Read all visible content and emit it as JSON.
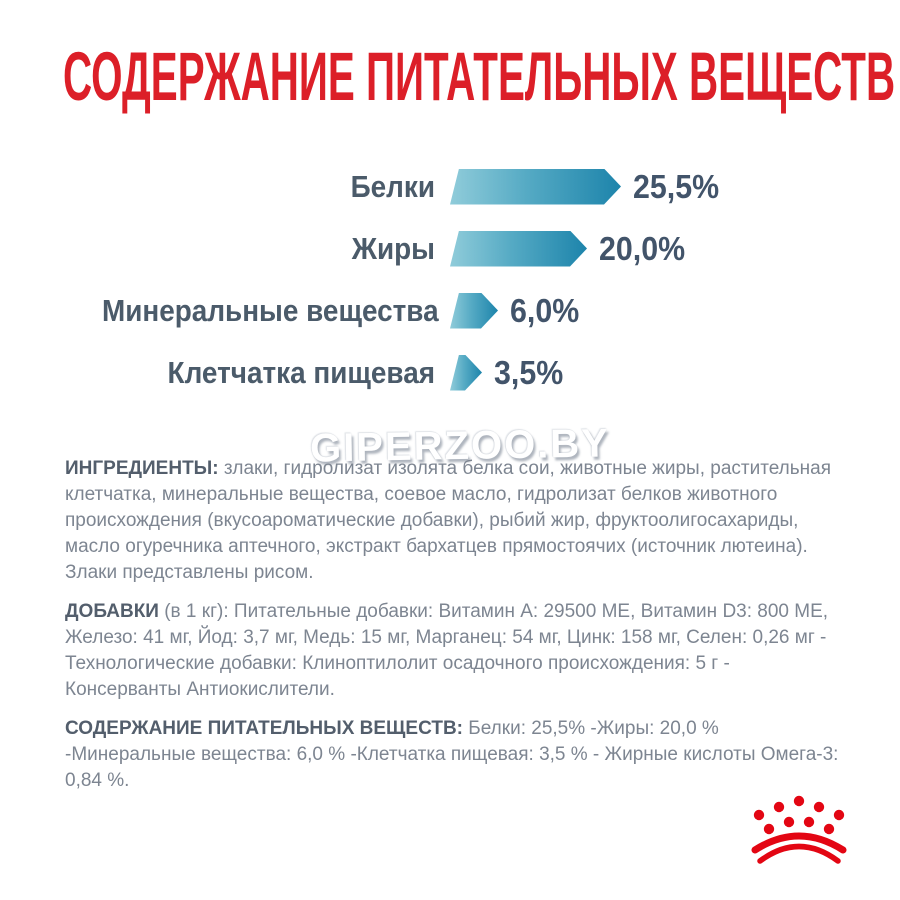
{
  "title": "СОДЕРЖАНИЕ ПИТАТЕЛЬНЫХ ВЕЩЕСТВ",
  "watermark": "GIPERZOO.BY",
  "colors": {
    "title_red": "#dc1f28",
    "logo_red": "#e30613",
    "bar_gradient_start": "#90ccda",
    "bar_gradient_end": "#1d84ab",
    "label_text": "#4b5b6a",
    "value_text": "#42546a",
    "body_text": "#7d8591",
    "header_text": "#535e6c"
  },
  "chart_data": {
    "type": "bar",
    "orientation": "horizontal",
    "title": "СОДЕРЖАНИЕ ПИТАТЕЛЬНЫХ ВЕЩЕСТВ",
    "categories": [
      "Белки",
      "Жиры",
      "Минеральные вещества",
      "Клетчатка пищевая"
    ],
    "values": [
      25.5,
      20.0,
      6.0,
      3.5
    ],
    "value_labels": [
      "25,5%",
      "20,0%",
      "6,0%",
      "3,5%"
    ],
    "unit": "%",
    "xlim": [
      0,
      27
    ],
    "grid": false,
    "legend": false,
    "bar_style": "arrow-gradient-teal"
  },
  "sections": {
    "ingredients": {
      "label": "ИНГРЕДИЕНТЫ:",
      "text": "злаки, гидролизат изолята белка сои, животные жиры, растительная клетчатка, минеральные вещества, соевое масло, гидролизат белков животного происхождения (вкусоароматические добавки), рыбий жир, фруктоолигосахариды, масло огуречника аптечного, экстракт бархатцев прямостоячих (источник лютеина). Злаки представлены рисом."
    },
    "additives": {
      "label": "ДОБАВКИ",
      "label_suffix": " (в 1 кг): ",
      "text": "Питательные добавки: Витамин A: 29500 МЕ, Витамин D3: 800 МЕ, Железо: 41 мг, Йод: 3,7 мг, Медь: 15 мг, Марганец: 54 мг, Цинк: 158 мг, Селен: 0,26 мг - Технологические добавки: Клиноптилолит осадочного происхождения: 5 г - Консерванты Антиокислители."
    },
    "analysis": {
      "label": "СОДЕРЖАНИЕ ПИТАТЕЛЬНЫХ ВЕЩЕСТВ:",
      "text": "Белки: 25,5% -Жиры: 20,0 % -Минеральные вещества: 6,0 % -Клетчатка пищевая: 3,5 % - Жирные кислоты Омега-3: 0,84 %."
    }
  },
  "logo": {
    "name": "royal-canin-crown"
  }
}
